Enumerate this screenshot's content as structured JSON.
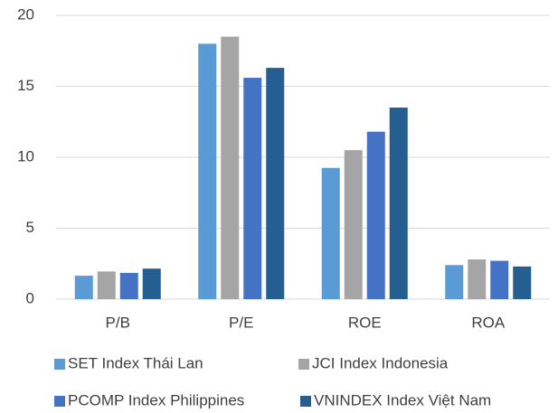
{
  "chart_data": {
    "type": "bar",
    "categories": [
      "P/B",
      "P/E",
      "ROE",
      "ROA"
    ],
    "series": [
      {
        "name": "SET Index Thái Lan",
        "color": "#5b9bd5",
        "values": [
          1.65,
          18.0,
          9.25,
          2.4
        ]
      },
      {
        "name": "JCI Index Indonesia",
        "color": "#a5a5a5",
        "values": [
          1.95,
          18.5,
          10.5,
          2.8
        ]
      },
      {
        "name": "PCOMP Index Philippines",
        "color": "#4472c4",
        "values": [
          1.85,
          15.6,
          11.8,
          2.7
        ]
      },
      {
        "name": "VNINDEX Index Việt Nam",
        "color": "#255e91",
        "values": [
          2.15,
          16.3,
          13.5,
          2.3
        ]
      }
    ],
    "ylim": [
      0,
      20
    ],
    "yticks": [
      0,
      5,
      10,
      15,
      20
    ],
    "grid": true
  }
}
